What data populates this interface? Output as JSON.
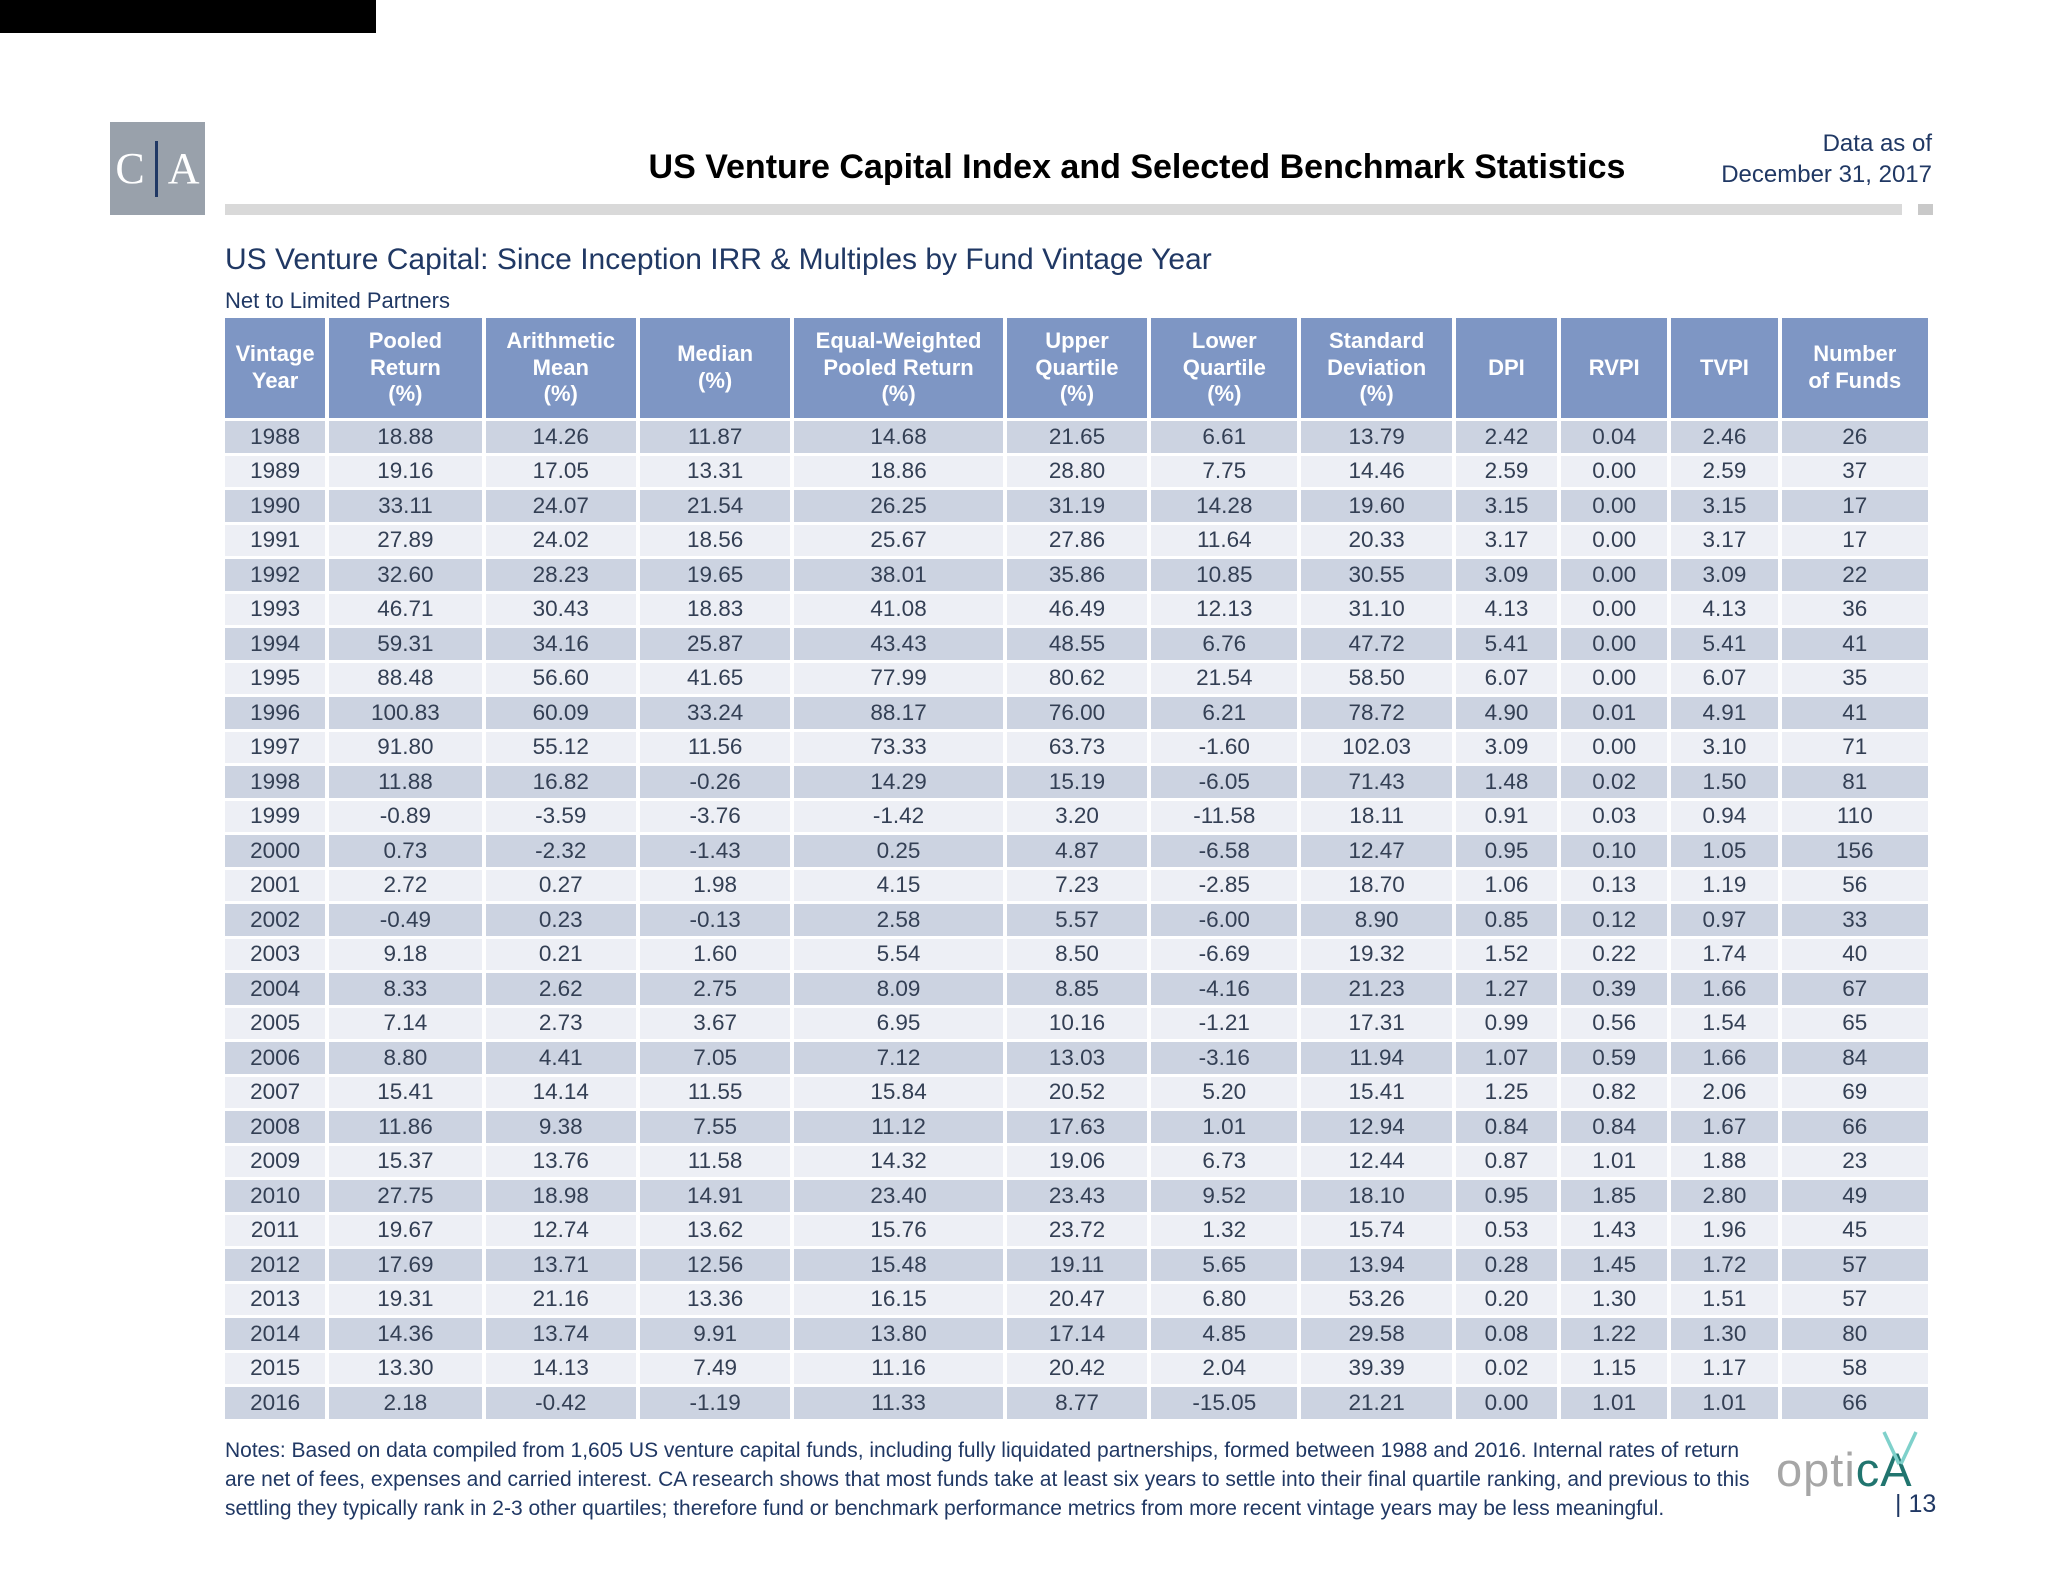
{
  "page": {
    "title": "US Venture Capital Index and Selected Benchmark Statistics",
    "data_as_of": "Data as of\nDecember 31, 2017",
    "section_title": "US Venture Capital: Since Inception IRR & Multiples by Fund Vintage Year",
    "section_subtitle": "Net to Limited Partners",
    "notes": "Notes: Based on data compiled from 1,605 US venture capital funds, including fully liquidated partnerships, formed between 1988 and 2016. Internal rates of return\nare net of fees, expenses and carried interest. CA research shows that most funds take at least six years to settle into their final quartile ranking, and previous to this\nsettling they typically rank in 2-3 other quartiles; therefore fund or benchmark performance metrics from more recent vintage years may be less meaningful.",
    "page_number": "| 13",
    "ca_logo": {
      "left_letter": "C",
      "right_letter": "A"
    },
    "optica_logo": {
      "gray_part": "opti",
      "teal_part": "cA"
    }
  },
  "table": {
    "columns": [
      "Vintage\nYear",
      "Pooled Return\n(%)",
      "Arithmetic\nMean\n(%)",
      "Median\n(%)",
      "Equal-Weighted\nPooled Return\n(%)",
      "Upper\nQuartile\n(%)",
      "Lower Quartile\n(%)",
      "Standard\nDeviation\n(%)",
      "DPI",
      "RVPI",
      "TVPI",
      "Number\nof Funds"
    ],
    "rows": [
      [
        "1988",
        "18.88",
        "14.26",
        "11.87",
        "14.68",
        "21.65",
        "6.61",
        "13.79",
        "2.42",
        "0.04",
        "2.46",
        "26"
      ],
      [
        "1989",
        "19.16",
        "17.05",
        "13.31",
        "18.86",
        "28.80",
        "7.75",
        "14.46",
        "2.59",
        "0.00",
        "2.59",
        "37"
      ],
      [
        "1990",
        "33.11",
        "24.07",
        "21.54",
        "26.25",
        "31.19",
        "14.28",
        "19.60",
        "3.15",
        "0.00",
        "3.15",
        "17"
      ],
      [
        "1991",
        "27.89",
        "24.02",
        "18.56",
        "25.67",
        "27.86",
        "11.64",
        "20.33",
        "3.17",
        "0.00",
        "3.17",
        "17"
      ],
      [
        "1992",
        "32.60",
        "28.23",
        "19.65",
        "38.01",
        "35.86",
        "10.85",
        "30.55",
        "3.09",
        "0.00",
        "3.09",
        "22"
      ],
      [
        "1993",
        "46.71",
        "30.43",
        "18.83",
        "41.08",
        "46.49",
        "12.13",
        "31.10",
        "4.13",
        "0.00",
        "4.13",
        "36"
      ],
      [
        "1994",
        "59.31",
        "34.16",
        "25.87",
        "43.43",
        "48.55",
        "6.76",
        "47.72",
        "5.41",
        "0.00",
        "5.41",
        "41"
      ],
      [
        "1995",
        "88.48",
        "56.60",
        "41.65",
        "77.99",
        "80.62",
        "21.54",
        "58.50",
        "6.07",
        "0.00",
        "6.07",
        "35"
      ],
      [
        "1996",
        "100.83",
        "60.09",
        "33.24",
        "88.17",
        "76.00",
        "6.21",
        "78.72",
        "4.90",
        "0.01",
        "4.91",
        "41"
      ],
      [
        "1997",
        "91.80",
        "55.12",
        "11.56",
        "73.33",
        "63.73",
        "-1.60",
        "102.03",
        "3.09",
        "0.00",
        "3.10",
        "71"
      ],
      [
        "1998",
        "11.88",
        "16.82",
        "-0.26",
        "14.29",
        "15.19",
        "-6.05",
        "71.43",
        "1.48",
        "0.02",
        "1.50",
        "81"
      ],
      [
        "1999",
        "-0.89",
        "-3.59",
        "-3.76",
        "-1.42",
        "3.20",
        "-11.58",
        "18.11",
        "0.91",
        "0.03",
        "0.94",
        "110"
      ],
      [
        "2000",
        "0.73",
        "-2.32",
        "-1.43",
        "0.25",
        "4.87",
        "-6.58",
        "12.47",
        "0.95",
        "0.10",
        "1.05",
        "156"
      ],
      [
        "2001",
        "2.72",
        "0.27",
        "1.98",
        "4.15",
        "7.23",
        "-2.85",
        "18.70",
        "1.06",
        "0.13",
        "1.19",
        "56"
      ],
      [
        "2002",
        "-0.49",
        "0.23",
        "-0.13",
        "2.58",
        "5.57",
        "-6.00",
        "8.90",
        "0.85",
        "0.12",
        "0.97",
        "33"
      ],
      [
        "2003",
        "9.18",
        "0.21",
        "1.60",
        "5.54",
        "8.50",
        "-6.69",
        "19.32",
        "1.52",
        "0.22",
        "1.74",
        "40"
      ],
      [
        "2004",
        "8.33",
        "2.62",
        "2.75",
        "8.09",
        "8.85",
        "-4.16",
        "21.23",
        "1.27",
        "0.39",
        "1.66",
        "67"
      ],
      [
        "2005",
        "7.14",
        "2.73",
        "3.67",
        "6.95",
        "10.16",
        "-1.21",
        "17.31",
        "0.99",
        "0.56",
        "1.54",
        "65"
      ],
      [
        "2006",
        "8.80",
        "4.41",
        "7.05",
        "7.12",
        "13.03",
        "-3.16",
        "11.94",
        "1.07",
        "0.59",
        "1.66",
        "84"
      ],
      [
        "2007",
        "15.41",
        "14.14",
        "11.55",
        "15.84",
        "20.52",
        "5.20",
        "15.41",
        "1.25",
        "0.82",
        "2.06",
        "69"
      ],
      [
        "2008",
        "11.86",
        "9.38",
        "7.55",
        "11.12",
        "17.63",
        "1.01",
        "12.94",
        "0.84",
        "0.84",
        "1.67",
        "66"
      ],
      [
        "2009",
        "15.37",
        "13.76",
        "11.58",
        "14.32",
        "19.06",
        "6.73",
        "12.44",
        "0.87",
        "1.01",
        "1.88",
        "23"
      ],
      [
        "2010",
        "27.75",
        "18.98",
        "14.91",
        "23.40",
        "23.43",
        "9.52",
        "18.10",
        "0.95",
        "1.85",
        "2.80",
        "49"
      ],
      [
        "2011",
        "19.67",
        "12.74",
        "13.62",
        "15.76",
        "23.72",
        "1.32",
        "15.74",
        "0.53",
        "1.43",
        "1.96",
        "45"
      ],
      [
        "2012",
        "17.69",
        "13.71",
        "12.56",
        "15.48",
        "19.11",
        "5.65",
        "13.94",
        "0.28",
        "1.45",
        "1.72",
        "57"
      ],
      [
        "2013",
        "19.31",
        "21.16",
        "13.36",
        "16.15",
        "20.47",
        "6.80",
        "53.26",
        "0.20",
        "1.30",
        "1.51",
        "57"
      ],
      [
        "2014",
        "14.36",
        "13.74",
        "9.91",
        "13.80",
        "17.14",
        "4.85",
        "29.58",
        "0.08",
        "1.22",
        "1.30",
        "80"
      ],
      [
        "2015",
        "13.30",
        "14.13",
        "7.49",
        "11.16",
        "20.42",
        "2.04",
        "39.39",
        "0.02",
        "1.15",
        "1.17",
        "58"
      ],
      [
        "2016",
        "2.18",
        "-0.42",
        "-1.19",
        "11.33",
        "8.77",
        "-15.05",
        "21.21",
        "0.00",
        "1.01",
        "1.01",
        "66"
      ]
    ]
  },
  "colors": {
    "header-bg": "#7E96C4",
    "row-dark": "#CCD3E1",
    "row-light": "#EDEFF5",
    "table-text": "#333F54",
    "navy": "#203864",
    "black": "#000000",
    "logo-gray": "#99A1AB",
    "divider-gray": "#D9D9D9",
    "divider-square": "#C9C9C9",
    "optica-gray": "#A6A6A6",
    "optica-teal": "#21756F",
    "optica-check": "#7FD1CB"
  }
}
